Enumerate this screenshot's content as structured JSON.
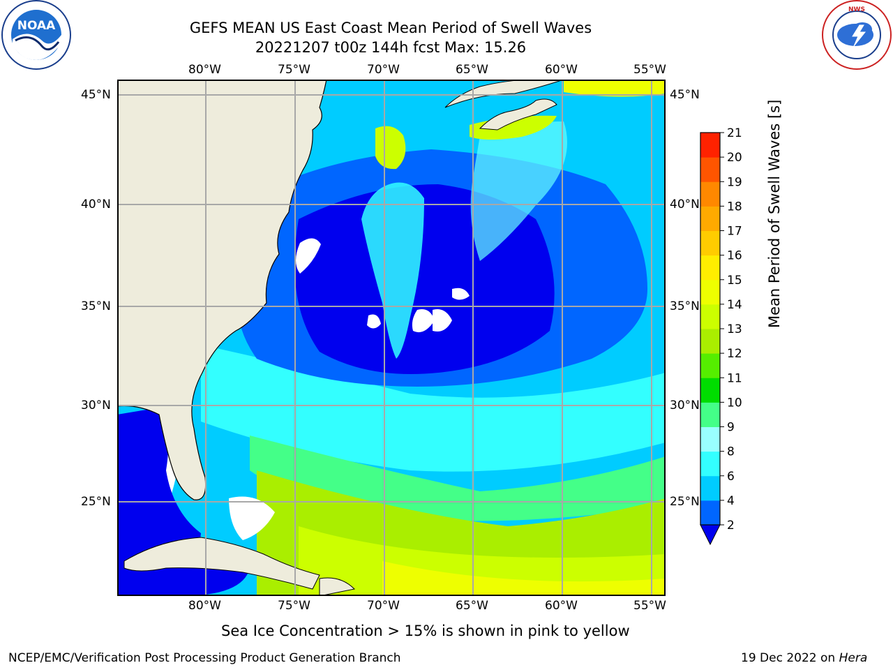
{
  "title": {
    "line1": "GEFS MEAN US East Coast Mean Period of Swell Waves",
    "line2": "20221207 t00z 144h fcst   Max: 15.26"
  },
  "logos": {
    "left": {
      "name": "NOAA",
      "text": "NOAA",
      "ring_text": "NATIONAL OCEANIC AND ATMOSPHERIC ADMINISTRATION · U.S. DEPARTMENT OF COMMERCE"
    },
    "right": {
      "name": "National Weather Service",
      "ring_text": "NATIONAL WEATHER SERVICE"
    }
  },
  "map": {
    "lon_labels": [
      "80°W",
      "75°W",
      "70°W",
      "65°W",
      "60°W",
      "55°W"
    ],
    "lat_labels": [
      "45°N",
      "40°N",
      "35°N",
      "30°N",
      "25°N"
    ],
    "lon_range": [
      -85,
      -54.2
    ],
    "lat_range": [
      20.5,
      46
    ],
    "grid": true,
    "land_color": "#eeecdc",
    "missing_color": "#ffffff"
  },
  "colorbar": {
    "label": "Mean Period of Swell Waves [s]",
    "ticks": [
      "2",
      "4",
      "6",
      "8",
      "9",
      "10",
      "11",
      "12",
      "13",
      "14",
      "15",
      "16",
      "17",
      "18",
      "19",
      "20",
      "21"
    ],
    "colors": [
      "#0066ff",
      "#00ccff",
      "#33ffff",
      "#99ffff",
      "#44ff88",
      "#00dd00",
      "#55ee00",
      "#aaee00",
      "#ccff00",
      "#eeff00",
      "#ffee00",
      "#ffcc00",
      "#ffaa00",
      "#ff8800",
      "#ff5500",
      "#ff2200"
    ],
    "under_color": "#0000ee"
  },
  "note": "Sea Ice Concentration > 15% is shown in pink to yellow",
  "footer": {
    "left": "NCEP/EMC/Verification Post Processing Product Generation Branch",
    "right_prefix": "19 Dec 2022 on ",
    "right_host": "Hera"
  }
}
